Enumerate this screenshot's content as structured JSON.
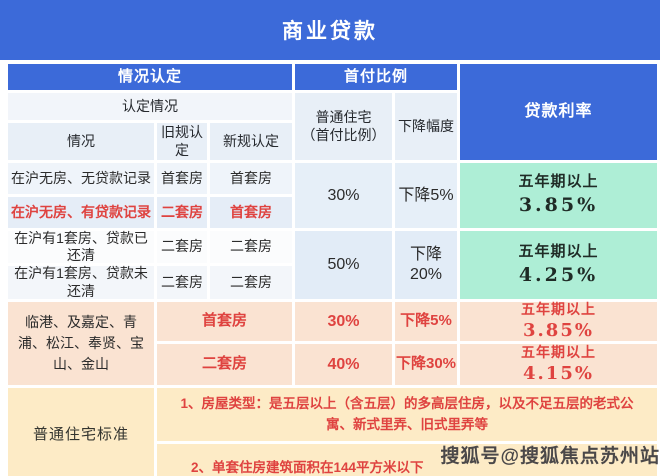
{
  "title": "商业贷款",
  "watermark": "搜狐号@搜狐焦点苏州站",
  "colors": {
    "header_blue": "#3c6ad9",
    "rate_green": "#aeeed6",
    "suburb_peach": "#fae3d2",
    "standard_cream": "#fdebc6",
    "red_text": "#df4340"
  },
  "header": {
    "group_situation": "情况认定",
    "group_down_payment": "首付比例",
    "group_rate": "贷款利率",
    "sub_determination": "认定情况",
    "col_situation": "情况",
    "col_old_rule": "旧规认定",
    "col_new_rule": "新规认定",
    "col_ordinary_line1": "普通住宅",
    "col_ordinary_line2": "（首付比例）",
    "col_decrease": "下降幅度"
  },
  "main_rows": [
    {
      "situation": "在沪无房、无贷款记录",
      "old_rule": "首套房",
      "new_rule": "首套房"
    },
    {
      "situation": "在沪无房、有贷款记录",
      "old_rule": "二套房",
      "new_rule": "首套房"
    },
    {
      "situation": "在沪有1套房、贷款已还清",
      "old_rule": "二套房",
      "new_rule": "二套房"
    },
    {
      "situation": "在沪有1套房、贷款未还清",
      "old_rule": "二套房",
      "new_rule": "二套房"
    }
  ],
  "merged": {
    "down_12": "30%",
    "dec_12": "下降5%",
    "rate_12_label": "五年期以上",
    "rate_12_value": "3.85%",
    "down_34": "50%",
    "dec_34": "下降20%",
    "rate_34_label": "五年期以上",
    "rate_34_value": "4.25%"
  },
  "suburb": {
    "area": "临港、及嘉定、青浦、松江、奉贤、宝山、金山",
    "rows": [
      {
        "type": "首套房",
        "down": "30%",
        "dec": "下降5%",
        "rate_label": "五年期以上",
        "rate_value": "3.85%"
      },
      {
        "type": "二套房",
        "down": "40%",
        "dec": "下降30%",
        "rate_label": "五年期以上",
        "rate_value": "4.15%"
      }
    ]
  },
  "standard": {
    "label": "普通住宅标准",
    "notes": [
      "1、房屋类型：是五层以上（含五层）的多高层住房，以及不足五层的老式公寓、新式里弄、旧式里弄等",
      "2、单套住房建筑面积在144平方米以下"
    ]
  },
  "chart_data": {
    "type": "table",
    "title": "商业贷款",
    "column_groups": [
      "情况认定",
      "首付比例",
      "贷款利率"
    ],
    "columns": [
      "情况",
      "旧规认定",
      "新规认定",
      "普通住宅（首付比例）",
      "下降幅度",
      "贷款利率"
    ],
    "rows": [
      [
        "在沪无房、无贷款记录",
        "首套房",
        "首套房",
        "30%",
        "下降5%",
        "五年期以上 3.85%"
      ],
      [
        "在沪无房、有贷款记录",
        "二套房",
        "首套房",
        "30%",
        "下降5%",
        "五年期以上 3.85%"
      ],
      [
        "在沪有1套房、贷款已还清",
        "二套房",
        "二套房",
        "50%",
        "下降20%",
        "五年期以上 4.25%"
      ],
      [
        "在沪有1套房、贷款未还清",
        "二套房",
        "二套房",
        "50%",
        "下降20%",
        "五年期以上 4.25%"
      ],
      [
        "临港、及嘉定、青浦、松江、奉贤、宝山、金山",
        "首套房",
        "首套房",
        "30%",
        "下降5%",
        "五年期以上 3.85%"
      ],
      [
        "临港、及嘉定、青浦、松江、奉贤、宝山、金山",
        "二套房",
        "二套房",
        "40%",
        "下降30%",
        "五年期以上 4.15%"
      ],
      [
        "普通住宅标准",
        "1、房屋类型：是五层以上（含五层）的多高层住房，以及不足五层的老式公寓、新式里弄、旧式里弄等",
        "",
        "",
        "",
        ""
      ],
      [
        "普通住宅标准",
        "2、单套住房建筑面积在144平方米以下",
        "",
        "",
        "",
        ""
      ]
    ]
  }
}
